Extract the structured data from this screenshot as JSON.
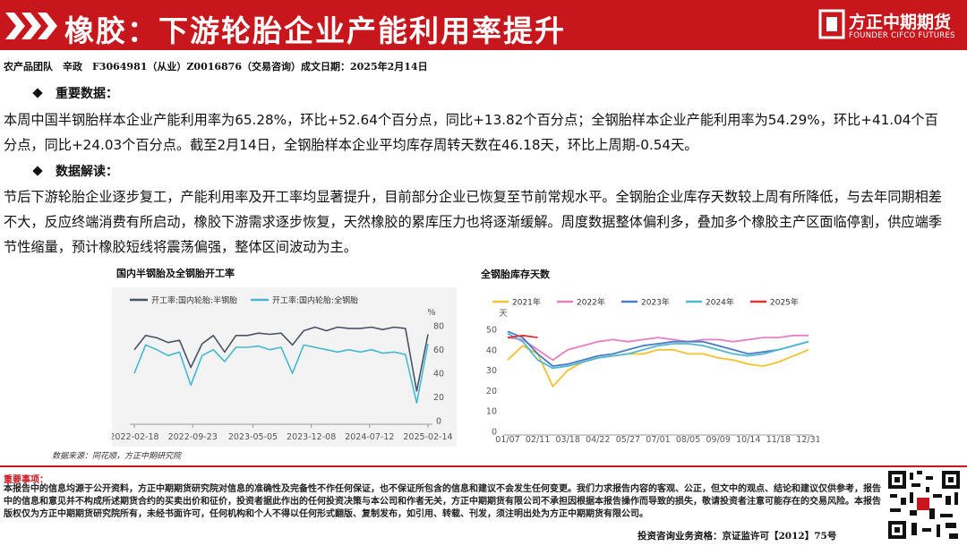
{
  "header": {
    "title": "橡胶：下游轮胎企业产能利用率提升",
    "logo_cn": "方正中期期货",
    "logo_en": "FOUNDER CIFCO FUTURES"
  },
  "byline": "农产品团队　辛政　F3064981（从业）Z0016876（交易咨询）成文日期：2025年2月14日",
  "sections": [
    {
      "heading": "重要数据：",
      "text": "本周中国半钢胎样本企业产能利用率为65.28%，环比+52.64个百分点，同比+13.82个百分点；全钢胎样本企业产能利用率为54.29%，环比+41.04个百分点，同比+24.03个百分点。截至2月14日，全钢胎样本企业平均库存周转天数在46.18天，环比上周期-0.54天。"
    },
    {
      "heading": "数据解读：",
      "text": "节后下游轮胎企业逐步复工，产能利用率及开工率均显著提升，目前部分企业已恢复至节前常规水平。全钢胎企业库存天数较上周有所降低，与去年同期相差不大，反应终端消费有所启动，橡胶下游需求逐步恢复，天然橡胶的累库压力也将逐渐缓解。周度数据整体偏利多，叠加多个橡胶主产区面临停割，供应端季节性缩量，预计橡胶短线将震荡偏强，整体区间波动为主。"
    }
  ],
  "chart_data": [
    {
      "type": "line",
      "title": "国内半钢胎及全钢胎开工率",
      "y_unit": "%",
      "x": [
        0,
        6,
        12,
        18,
        24,
        30,
        36,
        42,
        48,
        54,
        60,
        66,
        72,
        78,
        84,
        90,
        96,
        102,
        108,
        114,
        120,
        126,
        132,
        138,
        144,
        150,
        156
      ],
      "xlim": [
        0,
        156
      ],
      "xticks": [
        {
          "value": 0,
          "label": "2022-02-18"
        },
        {
          "value": 31,
          "label": "2022-09-23"
        },
        {
          "value": 63,
          "label": "2023-05-05"
        },
        {
          "value": 94,
          "label": "2023-12-08"
        },
        {
          "value": 125,
          "label": "2024-07-12"
        },
        {
          "value": 156,
          "label": "2025-02-14"
        }
      ],
      "ylim": [
        0,
        90
      ],
      "yticks": [
        0,
        20,
        40,
        60,
        80
      ],
      "series": [
        {
          "name": "开工率:国内轮胎:半钢胎",
          "color": "#4b5264",
          "values": [
            60,
            72,
            70,
            66,
            68,
            45,
            65,
            72,
            58,
            72,
            72,
            74,
            73,
            74,
            64,
            76,
            79,
            76,
            79,
            78,
            78,
            79,
            77,
            79,
            78,
            25,
            73
          ]
        },
        {
          "name": "开工率:国内轮胎:全钢胎",
          "color": "#45b9d3",
          "values": [
            40,
            64,
            60,
            55,
            58,
            30,
            55,
            60,
            50,
            62,
            62,
            63,
            60,
            62,
            40,
            64,
            62,
            60,
            58,
            60,
            58,
            60,
            57,
            58,
            56,
            15,
            65
          ]
        }
      ]
    },
    {
      "type": "line",
      "title": "全钢胎库存天数",
      "y_unit": "天",
      "categories": [
        "01/07",
        null,
        "02/11",
        null,
        "03/18",
        null,
        "04/22",
        null,
        "05/27",
        null,
        "07/01",
        null,
        "08/05",
        null,
        "09/09",
        null,
        "10/14",
        null,
        "11/18",
        null,
        "12/31"
      ],
      "ylim": [
        0,
        50
      ],
      "yticks": [
        0,
        10,
        20,
        30,
        40,
        50
      ],
      "series": [
        {
          "name": "2021年",
          "color": "#f2c230",
          "values": [
            35,
            42,
            38,
            22,
            30,
            34,
            36,
            37,
            38,
            38,
            40,
            40,
            38,
            38,
            36,
            35,
            33,
            32,
            34,
            37,
            40
          ]
        },
        {
          "name": "2022年",
          "color": "#e77fc4",
          "values": [
            46,
            45,
            40,
            35,
            40,
            42,
            44,
            45,
            44,
            45,
            46,
            45,
            44,
            45,
            45,
            44,
            45,
            46,
            46,
            47,
            47
          ]
        },
        {
          "name": "2023年",
          "color": "#4a7cc9",
          "values": [
            49,
            46,
            38,
            32,
            33,
            35,
            37,
            38,
            40,
            42,
            43,
            44,
            44,
            44,
            42,
            40,
            38,
            39,
            40,
            42,
            44
          ]
        },
        {
          "name": "2024年",
          "color": "#4fb8d0",
          "values": [
            48,
            44,
            35,
            31,
            32,
            34,
            36,
            37,
            38,
            40,
            42,
            43,
            43,
            42,
            40,
            38,
            37,
            38,
            40,
            42,
            44
          ]
        },
        {
          "name": "2025年",
          "color": "#e0322f",
          "values": [
            46,
            47,
            46,
            null,
            null,
            null,
            null,
            null,
            null,
            null,
            null,
            null,
            null,
            null,
            null,
            null,
            null,
            null,
            null,
            null,
            null
          ]
        }
      ]
    }
  ],
  "source": "数据来源：同花顺，方正中期研究院",
  "footer": {
    "heading": "重要事项：",
    "text": "本报告中的信息均源于公开资料，方正中期期货研究院对信息的准确性及完备性不作任何保证，也不保证所包含的信息和建议不会发生任何变更。我们力求报告内容的客观、公正，但文中的观点、结论和建议仅供参考，报告中的信息和意见并不构成所述期货合约的买卖出价和征价，投资者据此作出的任何投资决策与本公司和作者无关，方正中期期货有限公司不承担因根据本报告操作而导致的损失，敬请投资者注意可能存在的交易风险。本报告版权仅为方正中期期货研究院所有，未经书面许可，任何机构和个人不得以任何形式翻版、复制发布，如引用、转载、刊发，须注明出处为方正中期期货有限公司。",
    "license": "投资咨询业务资格：京证监许可【2012】75号"
  }
}
